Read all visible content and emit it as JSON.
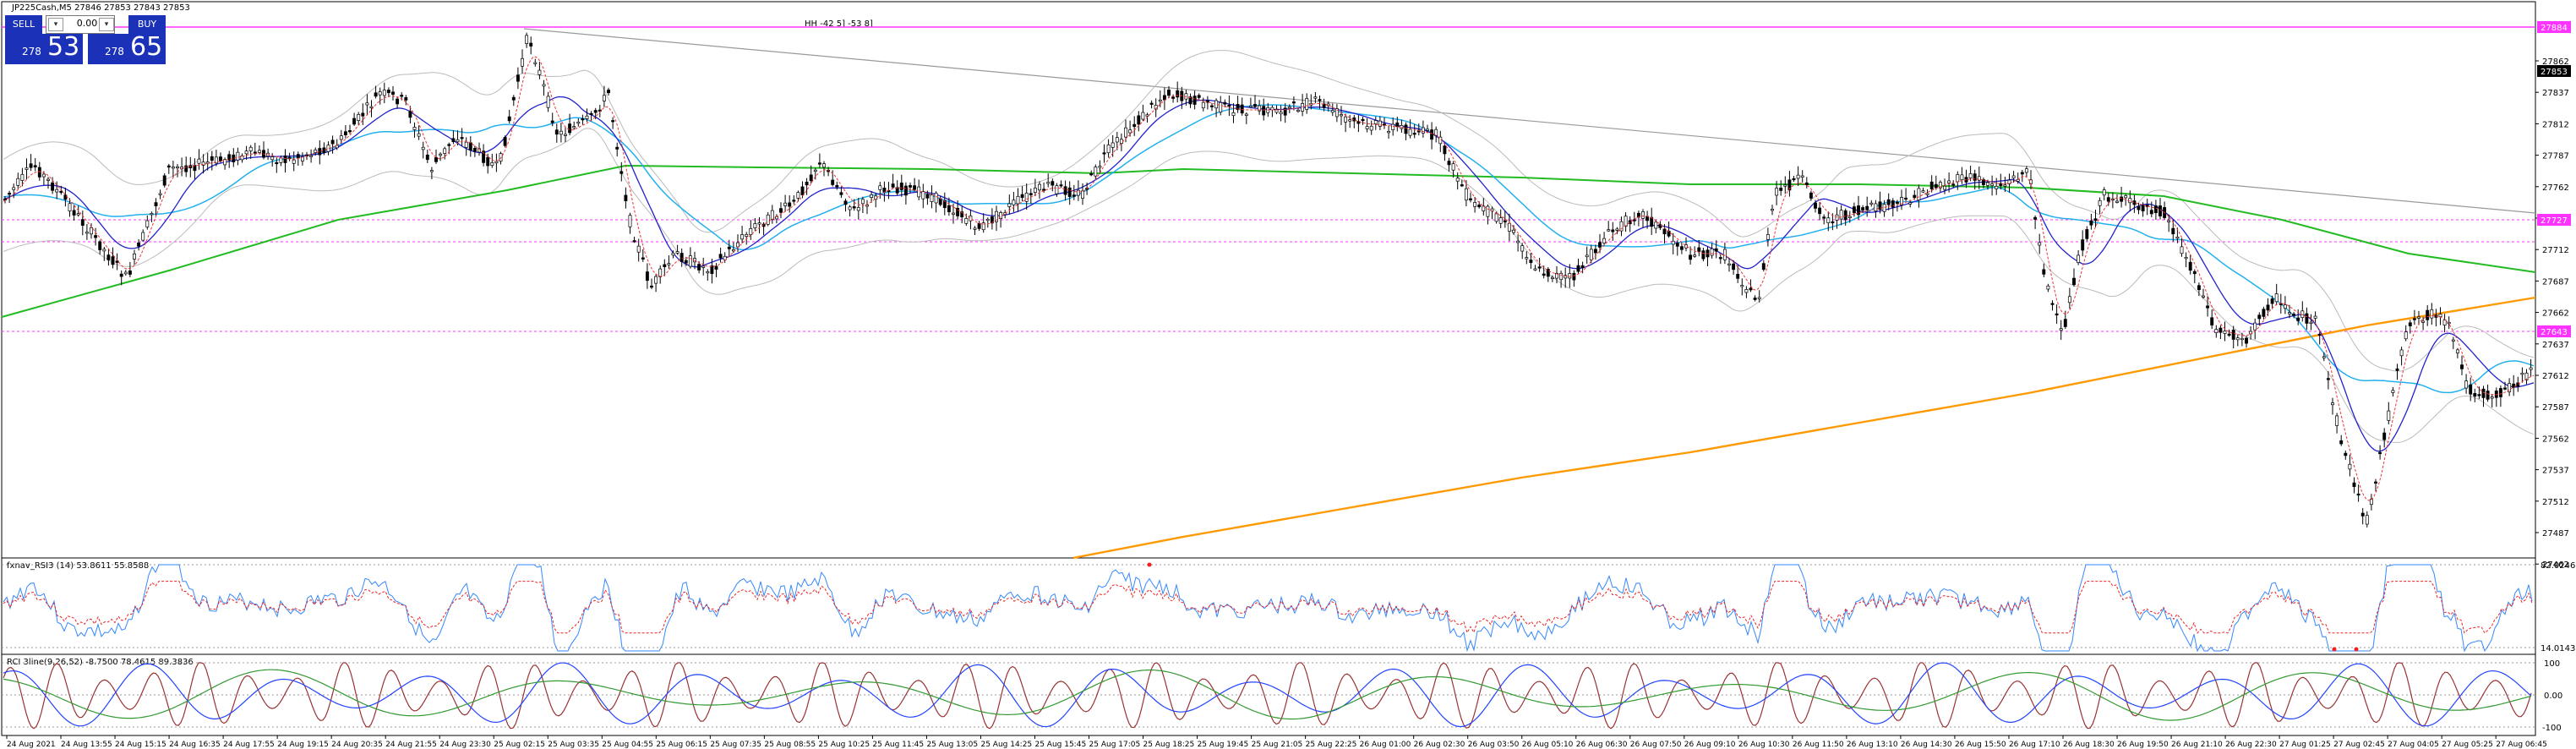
{
  "symbol_header": "JP225Cash,M5  27846 27853 27843 27853",
  "trade_panel": {
    "sell_label": "SELL",
    "buy_label": "BUY",
    "lot_value": "0.00",
    "sell_price_small": "278",
    "sell_price_big": "53",
    "buy_price_small": "278",
    "buy_price_big": "65"
  },
  "main_annotation": "HH -42 5] -53 8]",
  "price_axis": {
    "labels": [
      "27862",
      "27837",
      "27812",
      "27787",
      "27762",
      "27737",
      "27712",
      "27687",
      "27662",
      "27637",
      "27612",
      "27587",
      "27562",
      "27537",
      "27512",
      "27487",
      "27462"
    ],
    "tags": [
      {
        "text": "27884",
        "color": "#ff33ff"
      },
      {
        "text": "27853",
        "color": "#000000"
      },
      {
        "text": "27727",
        "color": "#ff33ff"
      },
      {
        "text": "27643",
        "color": "#ff33ff"
      }
    ]
  },
  "rsi_panel": {
    "label": "fxnav_RSI3 (14) 53.8611 55.8588",
    "axis_top": "82.0246",
    "axis_bottom": "14.0143"
  },
  "rci_panel": {
    "label": "RCI 3line(9,26,52) -8.7500 78.4615 89.3836",
    "axis_labels": [
      "100",
      "0.00",
      "-100"
    ]
  },
  "time_axis": [
    "24 Aug 2021",
    "24 Aug 13:55",
    "24 Aug 15:15",
    "24 Aug 16:35",
    "24 Aug 17:55",
    "24 Aug 19:15",
    "24 Aug 20:35",
    "24 Aug 21:55",
    "24 Aug 23:30",
    "25 Aug 02:15",
    "25 Aug 03:35",
    "25 Aug 04:55",
    "25 Aug 06:15",
    "25 Aug 07:35",
    "25 Aug 08:55",
    "25 Aug 10:25",
    "25 Aug 11:45",
    "25 Aug 13:05",
    "25 Aug 14:25",
    "25 Aug 15:45",
    "25 Aug 17:05",
    "25 Aug 18:25",
    "25 Aug 19:45",
    "25 Aug 21:05",
    "25 Aug 22:25",
    "26 Aug 01:00",
    "26 Aug 02:30",
    "26 Aug 03:50",
    "26 Aug 05:10",
    "26 Aug 06:30",
    "26 Aug 07:50",
    "26 Aug 09:10",
    "26 Aug 10:30",
    "26 Aug 11:50",
    "26 Aug 13:10",
    "26 Aug 14:30",
    "26 Aug 15:50",
    "26 Aug 17:10",
    "26 Aug 18:30",
    "26 Aug 19:50",
    "26 Aug 21:10",
    "26 Aug 22:30",
    "27 Aug 01:25",
    "27 Aug 02:45",
    "27 Aug 04:05",
    "27 Aug 05:25",
    "27 Aug 06:45"
  ],
  "colors": {
    "grid_line": "#000000",
    "magenta": "#ff33ff",
    "ma_green": "#22bb22",
    "ma_orange": "#ff9900",
    "ma_blue": "#2222cc",
    "ma_cyan": "#22b0ee",
    "ma_red": "#ee3333",
    "band_gray": "#bbbbbb",
    "trend_gray": "#999999",
    "candle": "#000000",
    "rsi_blue": "#3388ff",
    "rsi_red": "#ee2222",
    "rci_red": "#993333",
    "rci_blue": "#2244ff",
    "rci_green": "#339933"
  }
}
